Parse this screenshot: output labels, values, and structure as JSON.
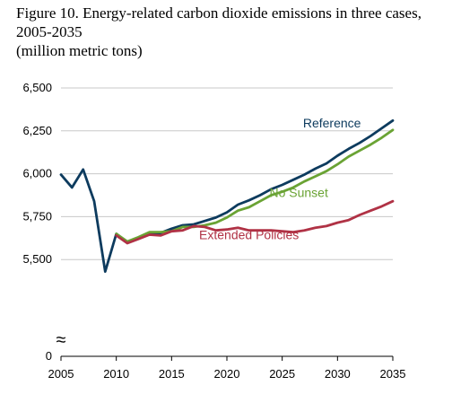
{
  "title_lines": [
    "Figure 10. Energy-related carbon dioxide emissions in three cases,",
    "2005-2035",
    "(million metric tons)"
  ],
  "colors": {
    "reference": "#0d3b5e",
    "no_sunset": "#6aa334",
    "extended": "#b03245",
    "grid": "#c8c8c8",
    "axis": "#000000"
  },
  "chart_data": {
    "type": "line",
    "title": "Figure 10. Energy-related carbon dioxide emissions in three cases, 2005-2035",
    "subtitle": "(million metric tons)",
    "xlabel": "",
    "ylabel": "",
    "xlim": [
      2005,
      2035
    ],
    "ylim": [
      5250,
      6500
    ],
    "y_ticks": [
      6500,
      6250,
      6000,
      5750,
      5500
    ],
    "y_tick_labels": [
      "6,500",
      "6,250",
      "6,000",
      "5,750",
      "5,500"
    ],
    "y_zero_label": "0",
    "x_ticks": [
      2005,
      2010,
      2015,
      2020,
      2025,
      2030,
      2035
    ],
    "x_tick_labels": [
      "2005",
      "2010",
      "2015",
      "2020",
      "2025",
      "2030",
      "2035"
    ],
    "axis_break": "≈",
    "grid": true,
    "legend": "direct labels on lines",
    "series": [
      {
        "name": "Reference",
        "color_key": "reference",
        "x": [
          2005,
          2006,
          2007,
          2008,
          2009,
          2010,
          2011,
          2012,
          2013,
          2014,
          2015,
          2016,
          2017,
          2018,
          2019,
          2020,
          2021,
          2022,
          2023,
          2024,
          2025,
          2026,
          2027,
          2028,
          2029,
          2030,
          2031,
          2032,
          2033,
          2034,
          2035
        ],
        "y": [
          5995,
          5920,
          6025,
          5840,
          5430,
          5650,
          5600,
          5625,
          5655,
          5655,
          5680,
          5700,
          5705,
          5725,
          5745,
          5775,
          5820,
          5845,
          5875,
          5910,
          5935,
          5965,
          5995,
          6030,
          6060,
          6105,
          6145,
          6180,
          6220,
          6265,
          6310
        ]
      },
      {
        "name": "No Sunset",
        "color_key": "no_sunset",
        "x": [
          2010,
          2011,
          2012,
          2013,
          2014,
          2015,
          2016,
          2017,
          2018,
          2019,
          2020,
          2021,
          2022,
          2023,
          2024,
          2025,
          2026,
          2027,
          2028,
          2029,
          2030,
          2031,
          2032,
          2033,
          2034,
          2035
        ],
        "y": [
          5650,
          5605,
          5630,
          5660,
          5660,
          5665,
          5690,
          5690,
          5700,
          5715,
          5745,
          5785,
          5805,
          5840,
          5875,
          5895,
          5920,
          5955,
          5985,
          6015,
          6055,
          6100,
          6135,
          6170,
          6210,
          6255
        ]
      },
      {
        "name": "Extended Policies",
        "color_key": "extended",
        "x": [
          2010,
          2011,
          2012,
          2013,
          2014,
          2015,
          2016,
          2017,
          2018,
          2019,
          2020,
          2021,
          2022,
          2023,
          2024,
          2025,
          2026,
          2027,
          2028,
          2029,
          2030,
          2031,
          2032,
          2033,
          2034,
          2035
        ],
        "y": [
          5640,
          5595,
          5620,
          5645,
          5640,
          5665,
          5670,
          5695,
          5690,
          5670,
          5675,
          5685,
          5670,
          5670,
          5670,
          5665,
          5660,
          5670,
          5685,
          5695,
          5715,
          5730,
          5760,
          5785,
          5810,
          5840
        ]
      }
    ],
    "series_labels": [
      {
        "text": "Reference",
        "color_key": "reference",
        "at": [
          2029.5,
          6270
        ]
      },
      {
        "text": "No Sunset",
        "color_key": "no_sunset",
        "at": [
          2026.5,
          5865
        ]
      },
      {
        "text": "Extended Policies",
        "color_key": "extended",
        "at": [
          2022,
          5620
        ]
      }
    ]
  }
}
